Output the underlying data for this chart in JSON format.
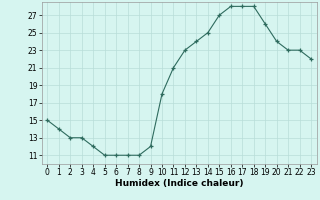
{
  "x": [
    0,
    1,
    2,
    3,
    4,
    5,
    6,
    7,
    8,
    9,
    10,
    11,
    12,
    13,
    14,
    15,
    16,
    17,
    18,
    19,
    20,
    21,
    22,
    23
  ],
  "y": [
    15,
    14,
    13,
    13,
    12,
    11,
    11,
    11,
    11,
    12,
    18,
    21,
    23,
    24,
    25,
    27,
    28,
    28,
    28,
    26,
    24,
    23,
    23,
    22
  ],
  "line_color": "#2e6b5e",
  "marker": "+",
  "marker_size": 3,
  "bg_color": "#d6f5f0",
  "grid_color": "#b8ddd8",
  "xlabel": "Humidex (Indice chaleur)",
  "xlim": [
    -0.5,
    23.5
  ],
  "ylim": [
    10.0,
    28.5
  ],
  "yticks": [
    11,
    13,
    15,
    17,
    19,
    21,
    23,
    25,
    27
  ],
  "xticks": [
    0,
    1,
    2,
    3,
    4,
    5,
    6,
    7,
    8,
    9,
    10,
    11,
    12,
    13,
    14,
    15,
    16,
    17,
    18,
    19,
    20,
    21,
    22,
    23
  ],
  "xlabel_fontsize": 6.5,
  "tick_fontsize": 5.5
}
